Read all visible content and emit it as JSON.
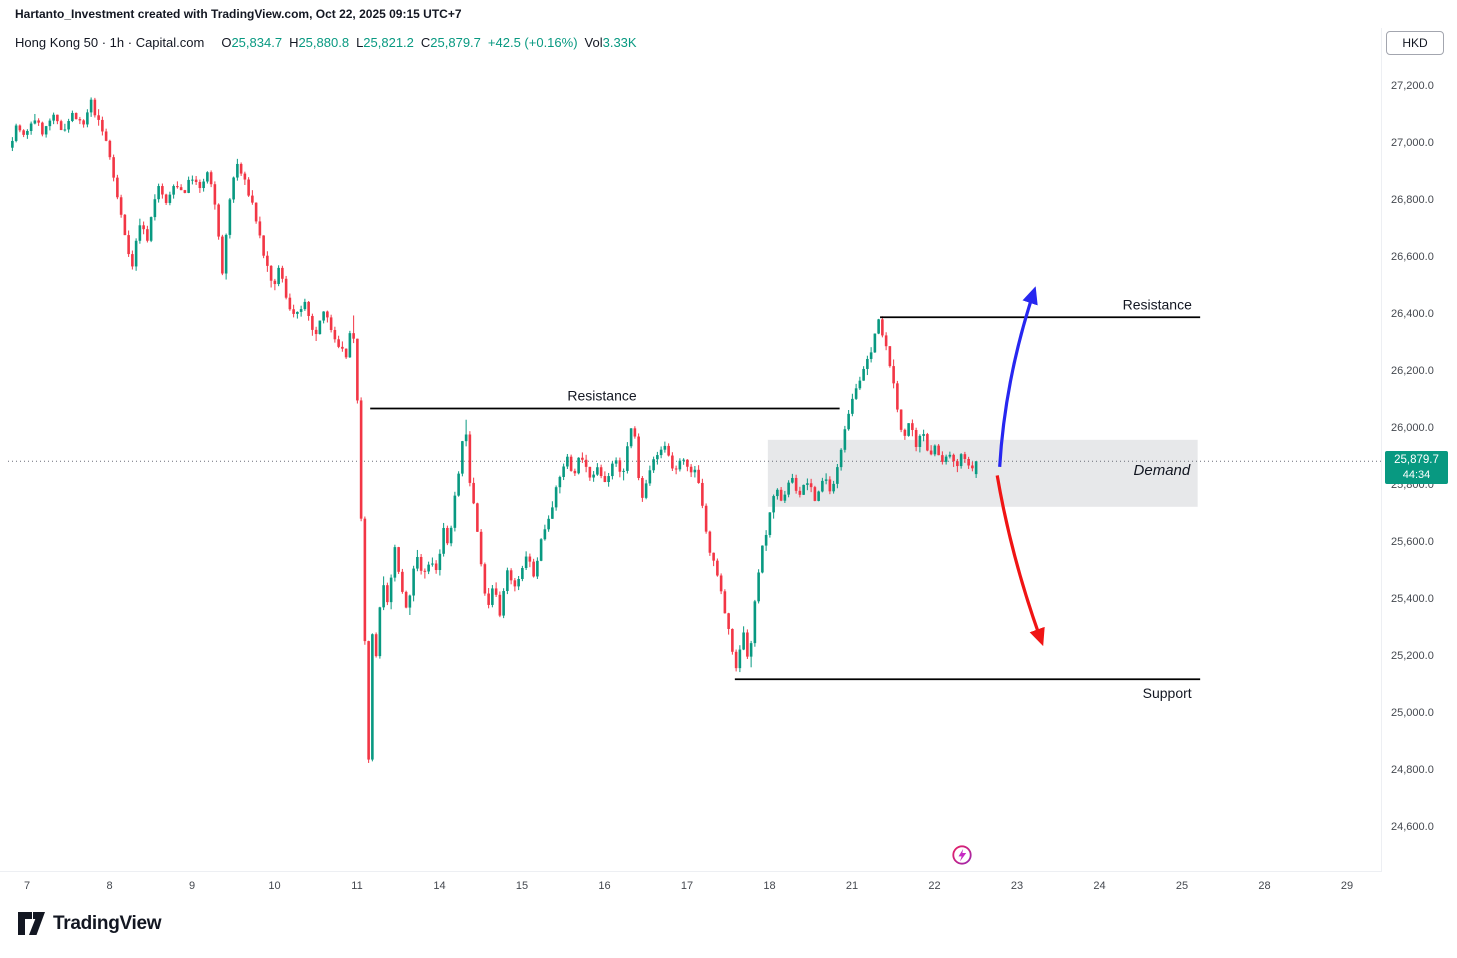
{
  "attribution": "Hartanto_Investment created with TradingView.com, Oct 22, 2025 09:15 UTC+7",
  "symbol_bar": {
    "title": "Hong Kong 50 · 1h · Capital.com",
    "ohlc": {
      "o": {
        "label": "O",
        "value": "25,834.7"
      },
      "h": {
        "label": "H",
        "value": "25,880.8"
      },
      "l": {
        "label": "L",
        "value": "25,821.2"
      },
      "c": {
        "label": "C",
        "value": "25,879.7"
      }
    },
    "change": "+42.5 (+0.16%)",
    "volume_label": "Vol",
    "volume_value": "3.33K"
  },
  "price_badge": {
    "price": "25,879.7",
    "countdown": "44:34"
  },
  "axis": {
    "currency": "HKD"
  },
  "logo": {
    "text": "TradingView"
  },
  "colors": {
    "up": "#089981",
    "down": "#f23645",
    "text": "#131722",
    "axis_text": "#44484f",
    "border": "#edeff3",
    "level_line": "#000000",
    "zone_fill": "rgba(145,150,160,0.22)",
    "price_line": "#6a6d78"
  },
  "chart_data": {
    "type": "candlestick",
    "title": "Hong Kong 50 · 1h · Capital.com",
    "symbol": "Hong Kong 50",
    "interval": "1h",
    "provider": "Capital.com",
    "currency": "HKD",
    "current": {
      "open": 25834.7,
      "high": 25880.8,
      "low": 25821.2,
      "close": 25879.7,
      "change": "+42.5",
      "change_pct": "+0.16%",
      "volume": "3.33K"
    },
    "current_price_line": 25879.7,
    "y_axis": {
      "ticks": [
        27200,
        27000,
        26800,
        26600,
        26400,
        26200,
        26000,
        25800,
        25600,
        25400,
        25200,
        25000,
        24800,
        24600
      ],
      "min": 24450,
      "max": 27350
    },
    "x_axis": {
      "labels": [
        "7",
        "8",
        "9",
        "10",
        "11",
        "14",
        "15",
        "16",
        "17",
        "18",
        "21",
        "22",
        "23",
        "24",
        "25",
        "28",
        "29"
      ],
      "candles_per_day": 22,
      "t_start": -0.2,
      "t_end": 11.52
    },
    "price_path": [
      [
        -0.2,
        26980
      ],
      [
        -0.1,
        27060
      ],
      [
        0.0,
        27010
      ],
      [
        0.1,
        27090
      ],
      [
        0.22,
        27030
      ],
      [
        0.33,
        27090
      ],
      [
        0.45,
        27040
      ],
      [
        0.58,
        27100
      ],
      [
        0.7,
        27050
      ],
      [
        0.8,
        27140
      ],
      [
        0.9,
        27060
      ],
      [
        1.0,
        26990
      ],
      [
        1.1,
        26830
      ],
      [
        1.2,
        26690
      ],
      [
        1.3,
        26560
      ],
      [
        1.38,
        26720
      ],
      [
        1.48,
        26660
      ],
      [
        1.6,
        26850
      ],
      [
        1.72,
        26780
      ],
      [
        1.82,
        26860
      ],
      [
        1.92,
        26820
      ],
      [
        2.02,
        26880
      ],
      [
        2.12,
        26830
      ],
      [
        2.22,
        26900
      ],
      [
        2.32,
        26740
      ],
      [
        2.4,
        26520
      ],
      [
        2.46,
        26760
      ],
      [
        2.56,
        26930
      ],
      [
        2.66,
        26860
      ],
      [
        2.76,
        26780
      ],
      [
        2.88,
        26620
      ],
      [
        3.0,
        26480
      ],
      [
        3.08,
        26560
      ],
      [
        3.18,
        26440
      ],
      [
        3.28,
        26380
      ],
      [
        3.38,
        26440
      ],
      [
        3.5,
        26310
      ],
      [
        3.62,
        26400
      ],
      [
        3.72,
        26340
      ],
      [
        3.82,
        26280
      ],
      [
        3.9,
        26240
      ],
      [
        3.96,
        26390
      ],
      [
        4.02,
        26150
      ],
      [
        4.07,
        25700
      ],
      [
        4.11,
        25300
      ],
      [
        4.14,
        25080
      ],
      [
        4.165,
        24830
      ],
      [
        4.2,
        25280
      ],
      [
        4.26,
        25200
      ],
      [
        4.33,
        25480
      ],
      [
        4.4,
        25360
      ],
      [
        4.48,
        25580
      ],
      [
        4.56,
        25430
      ],
      [
        4.64,
        25340
      ],
      [
        4.73,
        25560
      ],
      [
        4.82,
        25470
      ],
      [
        4.92,
        25540
      ],
      [
        5.0,
        25480
      ],
      [
        5.06,
        25660
      ],
      [
        5.14,
        25580
      ],
      [
        5.22,
        25790
      ],
      [
        5.28,
        25870
      ],
      [
        5.33,
        26040
      ],
      [
        5.38,
        25830
      ],
      [
        5.46,
        25690
      ],
      [
        5.54,
        25480
      ],
      [
        5.61,
        25370
      ],
      [
        5.68,
        25460
      ],
      [
        5.76,
        25340
      ],
      [
        5.84,
        25500
      ],
      [
        5.92,
        25430
      ],
      [
        6.0,
        25470
      ],
      [
        6.08,
        25560
      ],
      [
        6.16,
        25470
      ],
      [
        6.26,
        25610
      ],
      [
        6.36,
        25700
      ],
      [
        6.46,
        25800
      ],
      [
        6.56,
        25900
      ],
      [
        6.64,
        25830
      ],
      [
        6.74,
        25910
      ],
      [
        6.84,
        25810
      ],
      [
        6.94,
        25870
      ],
      [
        7.04,
        25800
      ],
      [
        7.14,
        25890
      ],
      [
        7.24,
        25810
      ],
      [
        7.32,
        25980
      ],
      [
        7.38,
        26000
      ],
      [
        7.46,
        25740
      ],
      [
        7.56,
        25850
      ],
      [
        7.66,
        25900
      ],
      [
        7.76,
        25940
      ],
      [
        7.86,
        25840
      ],
      [
        7.96,
        25890
      ],
      [
        8.06,
        25830
      ],
      [
        8.14,
        25860
      ],
      [
        8.22,
        25700
      ],
      [
        8.3,
        25550
      ],
      [
        8.38,
        25500
      ],
      [
        8.46,
        25380
      ],
      [
        8.54,
        25260
      ],
      [
        8.62,
        25140
      ],
      [
        8.7,
        25300
      ],
      [
        8.78,
        25160
      ],
      [
        8.86,
        25440
      ],
      [
        8.94,
        25580
      ],
      [
        9.02,
        25680
      ],
      [
        9.1,
        25780
      ],
      [
        9.18,
        25740
      ],
      [
        9.28,
        25830
      ],
      [
        9.38,
        25760
      ],
      [
        9.48,
        25810
      ],
      [
        9.58,
        25740
      ],
      [
        9.68,
        25830
      ],
      [
        9.78,
        25770
      ],
      [
        9.86,
        25870
      ],
      [
        9.94,
        26010
      ],
      [
        10.02,
        26100
      ],
      [
        10.1,
        26160
      ],
      [
        10.18,
        26200
      ],
      [
        10.26,
        26280
      ],
      [
        10.34,
        26375
      ],
      [
        10.4,
        26310
      ],
      [
        10.48,
        26230
      ],
      [
        10.56,
        26080
      ],
      [
        10.64,
        25960
      ],
      [
        10.72,
        26020
      ],
      [
        10.8,
        25920
      ],
      [
        10.88,
        25990
      ],
      [
        10.96,
        25900
      ],
      [
        11.04,
        25940
      ],
      [
        11.12,
        25870
      ],
      [
        11.2,
        25910
      ],
      [
        11.28,
        25850
      ],
      [
        11.36,
        25905
      ],
      [
        11.44,
        25855
      ],
      [
        11.52,
        25880
      ]
    ],
    "levels": [
      {
        "name": "resistance-mid",
        "label": "Resistance",
        "price": 26065,
        "t1": 4.16,
        "t2": 9.85,
        "label_t": 6.97,
        "label_side": "above"
      },
      {
        "name": "resistance-upper",
        "label": "Resistance",
        "price": 26385,
        "t1": 10.34,
        "t2": 14.22,
        "label_t": 13.7,
        "label_side": "above"
      },
      {
        "name": "support",
        "label": "Support",
        "price": 25115,
        "t1": 8.58,
        "t2": 14.22,
        "label_t": 13.82,
        "label_side": "below"
      }
    ],
    "zones": [
      {
        "name": "demand-zone",
        "label": "Demand",
        "price_top": 25955,
        "price_bottom": 25720,
        "t1": 8.98,
        "t2": 14.19,
        "label_t": 14.1,
        "label_price": 25850
      }
    ],
    "arrows": [
      {
        "name": "bullish-arrow",
        "color": "#2727f0",
        "from_t": 11.79,
        "from_price": 25860,
        "to_t": 12.21,
        "to_price": 26480,
        "curve": -12
      },
      {
        "name": "bearish-arrow",
        "color": "#f01414",
        "from_t": 11.76,
        "from_price": 25830,
        "to_t": 12.3,
        "to_price": 25245,
        "curve": -8
      }
    ],
    "seed": 7
  }
}
